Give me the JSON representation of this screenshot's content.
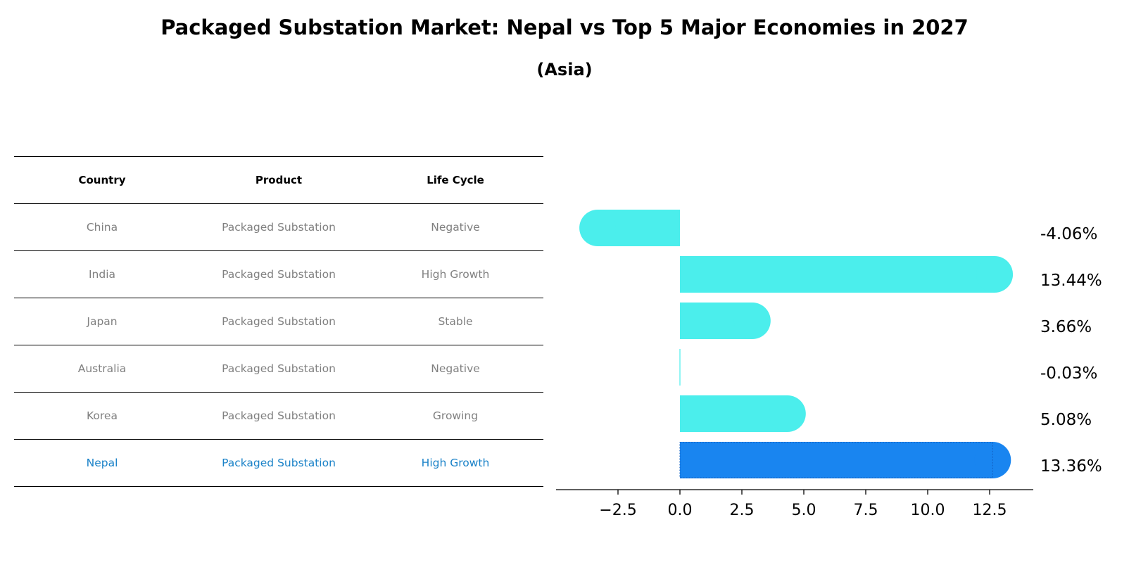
{
  "title": "Packaged Substation Market: Nepal vs Top 5 Major Economies in 2027",
  "subtitle": "(Asia)",
  "table": {
    "headers": [
      "Country",
      "Product",
      "Life Cycle"
    ],
    "rows": [
      {
        "country": "China",
        "product": "Packaged Substation",
        "life_cycle": "Negative"
      },
      {
        "country": "India",
        "product": "Packaged Substation",
        "life_cycle": "High Growth"
      },
      {
        "country": "Japan",
        "product": "Packaged Substation",
        "life_cycle": "Stable"
      },
      {
        "country": "Australia",
        "product": "Packaged Substation",
        "life_cycle": "Negative"
      },
      {
        "country": "Korea",
        "product": "Packaged Substation",
        "life_cycle": "Growing"
      },
      {
        "country": "Nepal",
        "product": "Packaged Substation",
        "life_cycle": "High Growth"
      }
    ]
  },
  "chart_data": {
    "type": "bar",
    "orientation": "horizontal",
    "categories": [
      "China",
      "India",
      "Japan",
      "Australia",
      "Korea",
      "Nepal"
    ],
    "values": [
      -4.06,
      13.44,
      3.66,
      -0.03,
      5.08,
      13.36
    ],
    "value_labels": [
      "-4.06%",
      "13.44%",
      "3.66%",
      "-0.03%",
      "5.08%",
      "13.36%"
    ],
    "xlim": [
      -5,
      14.5
    ],
    "xticks": [
      -2.5,
      0.0,
      2.5,
      5.0,
      7.5,
      10.0,
      12.5
    ],
    "xtick_labels": [
      "−2.5",
      "0.0",
      "2.5",
      "5.0",
      "7.5",
      "10.0",
      "12.5"
    ],
    "grid": false,
    "colors": {
      "default": "#4beeec",
      "highlight": "#1985f0"
    },
    "highlight_category": "Nepal"
  }
}
